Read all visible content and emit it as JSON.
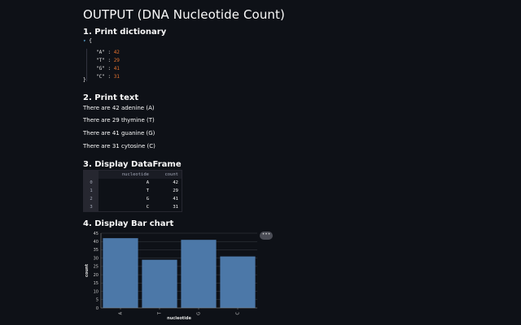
{
  "page": {
    "title": "OUTPUT (DNA Nucleotide Count)"
  },
  "sections": {
    "dict": {
      "heading": "1. Print dictionary"
    },
    "text": {
      "heading": "2. Print text"
    },
    "df": {
      "heading": "3. Display DataFrame"
    },
    "chart": {
      "heading": "4. Display Bar chart"
    }
  },
  "dictionary": {
    "toggle_icon": "caret-down-icon",
    "open_brace": "{",
    "close_brace": "}",
    "entries": [
      {
        "key": "\"A\"",
        "value": "42"
      },
      {
        "key": "\"T\"",
        "value": "29"
      },
      {
        "key": "\"G\"",
        "value": "41"
      },
      {
        "key": "\"C\"",
        "value": "31"
      }
    ]
  },
  "text_lines": [
    "There are 42 adenine (A)",
    "There are 29 thymine (T)",
    "There are 41 guanine (G)",
    "There are 31 cytosine (C)"
  ],
  "dataframe": {
    "columns": [
      "nucleotide",
      "count"
    ],
    "rows": [
      {
        "index": "0",
        "nucleotide": "A",
        "count": "42"
      },
      {
        "index": "1",
        "nucleotide": "T",
        "count": "29"
      },
      {
        "index": "2",
        "nucleotide": "G",
        "count": "41"
      },
      {
        "index": "3",
        "nucleotide": "C",
        "count": "31"
      }
    ]
  },
  "chart_menu": {
    "label": "•••",
    "icon": "more-options-icon"
  },
  "colors": {
    "background": "#0e1117",
    "bar": "#4c78a8",
    "number": "#e8732e",
    "grid": "#3a3d45"
  },
  "chart_data": {
    "type": "bar",
    "categories": [
      "A",
      "T",
      "G",
      "C"
    ],
    "values": [
      42,
      29,
      41,
      31
    ],
    "xlabel": "nucleotide",
    "ylabel": "count",
    "ylim": [
      0,
      45
    ],
    "yticks": [
      0,
      5,
      10,
      15,
      20,
      25,
      30,
      35,
      40,
      45
    ],
    "grid": true
  }
}
